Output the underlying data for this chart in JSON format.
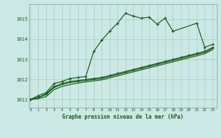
{
  "title": "Graphe pression niveau de la mer (hPa)",
  "bg_color": "#cce8e4",
  "grid_color": "#aacfcb",
  "line_color": "#1a5c1a",
  "x_min": 0,
  "x_max": 23,
  "y_min": 1010.6,
  "y_max": 1015.75,
  "yticks": [
    1011,
    1012,
    1013,
    1014,
    1015
  ],
  "xticks": [
    0,
    1,
    2,
    3,
    4,
    5,
    6,
    7,
    8,
    9,
    10,
    11,
    12,
    13,
    14,
    15,
    16,
    17,
    18,
    19,
    20,
    21,
    22,
    23
  ],
  "series1": [
    1011.0,
    1011.2,
    1011.35,
    1011.8,
    1011.9,
    1012.05,
    1012.1,
    1012.15,
    1013.4,
    1013.95,
    1014.4,
    1014.8,
    1015.3,
    1015.15,
    1015.05,
    1015.1,
    1014.75,
    1015.05,
    1014.4,
    null,
    null,
    1014.8,
    1013.6,
    1013.75
  ],
  "series2": [
    1011.0,
    1011.1,
    1011.3,
    1011.65,
    1011.8,
    1011.9,
    1011.95,
    1012.0,
    1012.05,
    1012.1,
    1012.2,
    1012.3,
    1012.4,
    1012.5,
    1012.6,
    1012.7,
    1012.8,
    1012.9,
    1013.0,
    1013.1,
    1013.2,
    1013.3,
    1013.4,
    1013.6
  ],
  "series3": [
    1011.0,
    1011.1,
    1011.25,
    1011.6,
    1011.75,
    1011.85,
    1011.9,
    1011.95,
    1012.0,
    1012.05,
    1012.15,
    1012.25,
    1012.35,
    1012.45,
    1012.55,
    1012.65,
    1012.75,
    1012.85,
    1012.95,
    1013.05,
    1013.15,
    1013.25,
    1013.35,
    1013.55
  ],
  "series4": [
    1011.0,
    1011.05,
    1011.15,
    1011.5,
    1011.65,
    1011.75,
    1011.82,
    1011.88,
    1011.93,
    1011.98,
    1012.08,
    1012.18,
    1012.28,
    1012.38,
    1012.48,
    1012.58,
    1012.68,
    1012.78,
    1012.88,
    1012.98,
    1013.08,
    1013.18,
    1013.28,
    1013.48
  ]
}
